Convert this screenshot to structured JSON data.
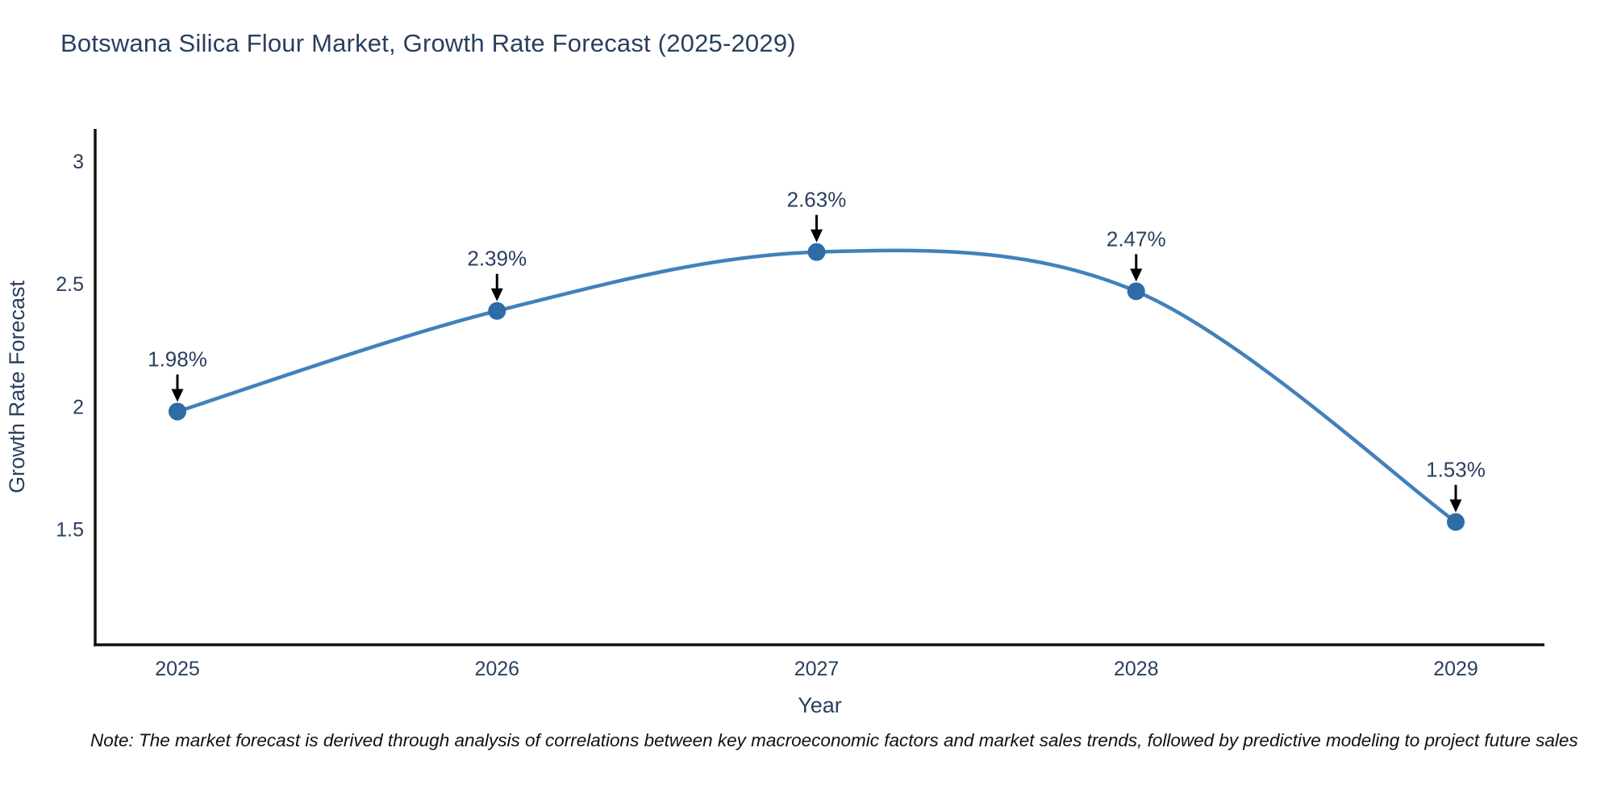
{
  "title": "Botswana Silica Flour Market, Growth Rate Forecast (2025-2029)",
  "note": "Note: The market forecast is derived through analysis of correlations between key macroeconomic factors and market sales trends, followed by predictive modeling to project future sales",
  "chart_data": {
    "type": "line",
    "title": "Botswana Silica Flour Market, Growth Rate Forecast (2025-2029)",
    "x": [
      "2025",
      "2026",
      "2027",
      "2028",
      "2029"
    ],
    "series": [
      {
        "name": "Growth Rate Forecast",
        "values": [
          1.98,
          2.39,
          2.63,
          2.47,
          1.53
        ],
        "labels": [
          "1.98%",
          "2.39%",
          "2.63%",
          "2.47%",
          "1.53%"
        ]
      }
    ],
    "xlabel": "Year",
    "ylabel": "Growth Rate Forecast",
    "yticks": [
      3,
      2.5,
      2,
      1.5
    ],
    "ylim": [
      1.03,
      3.13
    ],
    "line_shape": "spline",
    "grid": false,
    "legend": "none",
    "annotations_arrow": "down",
    "colors": {
      "line": "#4181bb",
      "marker": "#2d6ca6",
      "axis": "#111111",
      "text": "#2a3f5f",
      "arrow": "#000000"
    }
  }
}
